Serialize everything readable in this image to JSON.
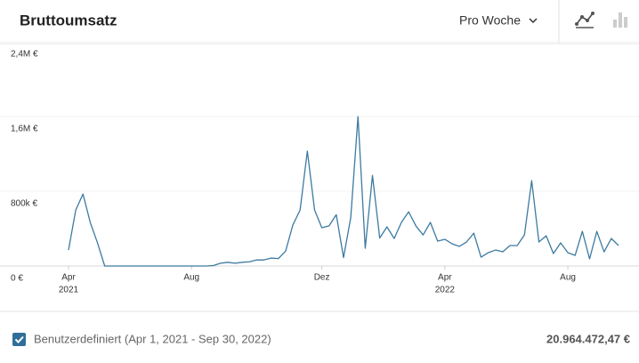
{
  "header": {
    "title": "Bruttoumsatz",
    "period": "Pro Woche"
  },
  "chart_data": {
    "type": "line",
    "categories": [
      "Apr",
      null,
      null,
      null,
      null,
      null,
      null,
      null,
      null,
      null,
      null,
      null,
      null,
      null,
      null,
      null,
      null,
      "Aug",
      null,
      null,
      null,
      null,
      null,
      null,
      null,
      null,
      null,
      null,
      null,
      null,
      null,
      null,
      null,
      null,
      null,
      "Dez",
      null,
      null,
      null,
      null,
      null,
      null,
      null,
      null,
      null,
      null,
      null,
      null,
      null,
      null,
      null,
      null,
      "Apr",
      null,
      null,
      null,
      null,
      null,
      null,
      null,
      null,
      null,
      null,
      null,
      null,
      null,
      null,
      null,
      null,
      "Aug",
      null,
      null,
      null,
      null,
      null,
      null,
      null
    ],
    "year_labels": [
      "2021",
      null,
      null,
      null,
      null,
      null,
      null,
      null,
      null,
      null,
      null,
      null,
      null,
      null,
      null,
      null,
      null,
      null,
      null,
      null,
      null,
      null,
      null,
      null,
      null,
      null,
      null,
      null,
      null,
      null,
      null,
      null,
      null,
      null,
      null,
      null,
      null,
      null,
      null,
      null,
      null,
      null,
      null,
      null,
      null,
      null,
      null,
      null,
      null,
      null,
      null,
      null,
      "2022",
      null,
      null,
      null,
      null,
      null,
      null,
      null,
      null,
      null,
      null,
      null,
      null,
      null,
      null,
      null,
      null,
      null,
      null,
      null,
      null,
      null,
      null,
      null,
      null
    ],
    "series": [
      {
        "name": "Bruttoumsatz",
        "color": "#3d7aa0",
        "values": [
          171000,
          600000,
          771000,
          467000,
          248000,
          0,
          0,
          0,
          0,
          0,
          0,
          0,
          0,
          0,
          0,
          0,
          0,
          0,
          0,
          0,
          5000,
          30000,
          40000,
          30000,
          40000,
          45000,
          65000,
          65000,
          85000,
          80000,
          160000,
          440000,
          600000,
          1230000,
          600000,
          410000,
          430000,
          550000,
          90000,
          520000,
          1600000,
          190000,
          970000,
          300000,
          419000,
          295000,
          467000,
          581000,
          429000,
          333000,
          467000,
          267000,
          286000,
          238000,
          210000,
          257000,
          352000,
          95000,
          143000,
          171000,
          152000,
          219000,
          219000,
          333000,
          914000,
          257000,
          324000,
          133000,
          248000,
          143000,
          114000,
          371000,
          76000,
          371000,
          152000,
          295000,
          219000
        ]
      }
    ],
    "ylim": [
      0,
      2400000
    ],
    "yticks": [
      {
        "value": 0,
        "label": "0 €"
      },
      {
        "value": 800000,
        "label": "800k €"
      },
      {
        "value": 1600000,
        "label": "1,6M €"
      },
      {
        "value": 2400000,
        "label": "2,4M €"
      }
    ],
    "grid": true
  },
  "footer": {
    "range": "Benutzerdefiniert (Apr 1, 2021 - Sep 30, 2022)",
    "total": "20.964.472,47 €"
  }
}
